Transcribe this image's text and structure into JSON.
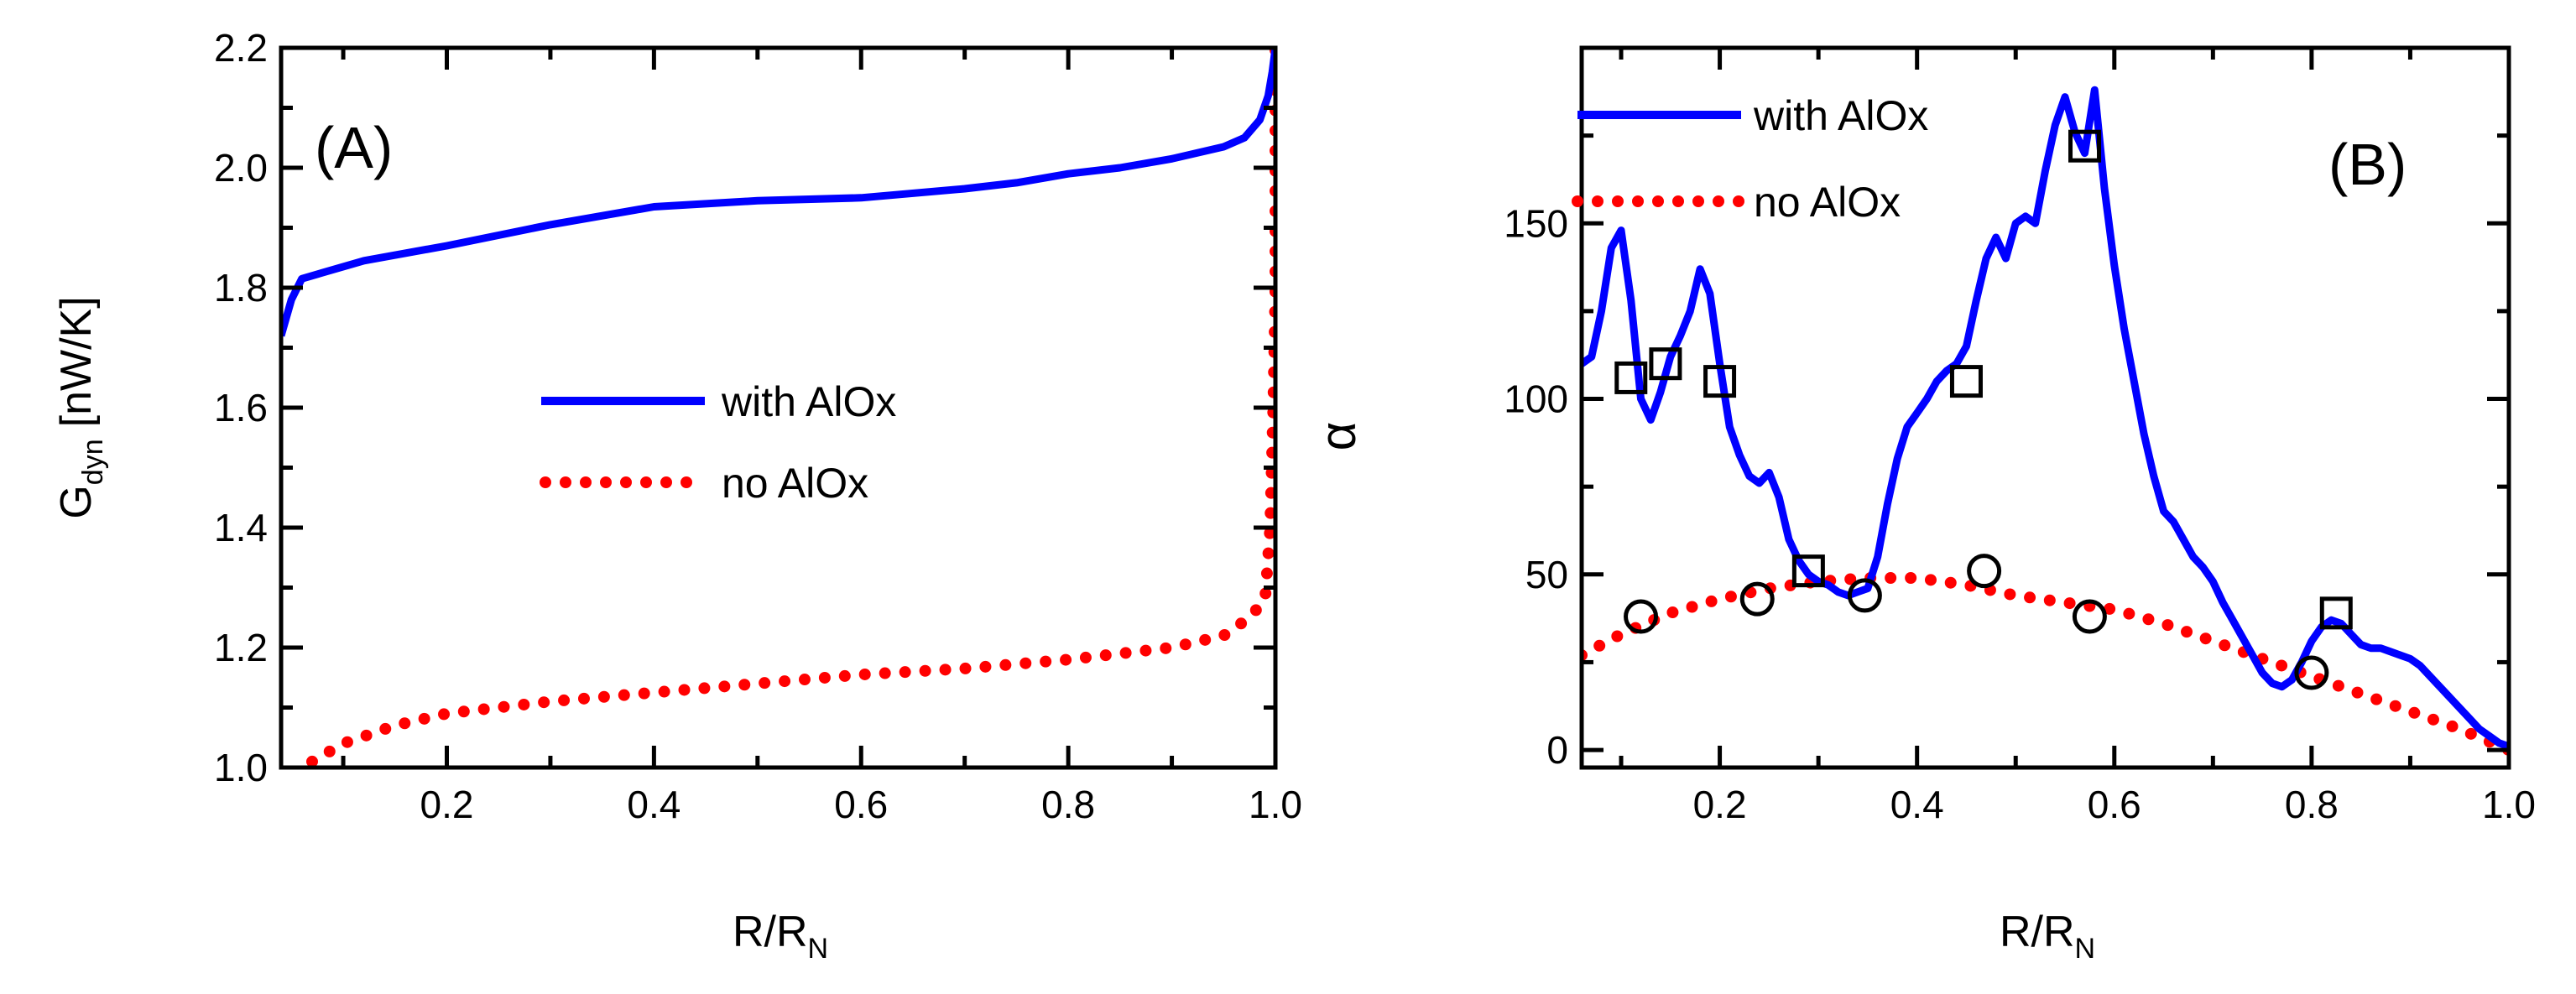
{
  "chart_data": [
    {
      "panel": "(A)",
      "type": "line",
      "xlabel": "R/R",
      "xlabel_sub": "N",
      "ylabel": "G",
      "ylabel_sub": "dyn",
      "ylabel_unit": "[nW/K]",
      "xlim": [
        0.04,
        1.0
      ],
      "ylim": [
        1.0,
        2.2
      ],
      "xticks": [
        0.2,
        0.4,
        0.6,
        0.8,
        1.0
      ],
      "xtick_labels": [
        "0.2",
        "0.4",
        "0.6",
        "0.8",
        "1.0"
      ],
      "yticks": [
        1.0,
        1.2,
        1.4,
        1.6,
        1.8,
        2.0,
        2.2
      ],
      "ytick_labels": [
        "1.0",
        "1.2",
        "1.4",
        "1.6",
        "1.8",
        "2.0",
        "2.2"
      ],
      "legend_position": "center",
      "series": [
        {
          "name": "with AlOx",
          "color": "#0000ff",
          "style": "solid",
          "x": [
            0.04,
            0.05,
            0.06,
            0.08,
            0.12,
            0.2,
            0.3,
            0.4,
            0.5,
            0.6,
            0.7,
            0.75,
            0.8,
            0.85,
            0.9,
            0.95,
            0.97,
            0.985,
            0.993,
            0.997,
            1.0
          ],
          "y": [
            1.72,
            1.78,
            1.815,
            1.825,
            1.845,
            1.87,
            1.905,
            1.935,
            1.945,
            1.95,
            1.965,
            1.975,
            1.99,
            2.0,
            2.015,
            2.035,
            2.05,
            2.08,
            2.12,
            2.16,
            2.2
          ]
        },
        {
          "name": "no AlOx",
          "color": "#ff0000",
          "style": "dotted",
          "x": [
            0.07,
            0.1,
            0.15,
            0.2,
            0.3,
            0.4,
            0.5,
            0.6,
            0.7,
            0.8,
            0.9,
            0.95,
            0.975,
            0.99,
            0.995,
            0.998,
            1.0,
            1.0,
            1.0,
            1.0
          ],
          "y": [
            1.01,
            1.04,
            1.07,
            1.09,
            1.11,
            1.125,
            1.14,
            1.155,
            1.165,
            1.18,
            1.2,
            1.22,
            1.25,
            1.28,
            1.4,
            1.6,
            1.8,
            2.0,
            2.1,
            2.2
          ]
        }
      ]
    },
    {
      "panel": "(B)",
      "type": "line",
      "xlabel": "R/R",
      "xlabel_sub": "N",
      "ylabel": "α",
      "xlim": [
        0.06,
        1.0
      ],
      "ylim": [
        -5,
        200
      ],
      "xticks": [
        0.2,
        0.4,
        0.6,
        0.8,
        1.0
      ],
      "xtick_labels": [
        "0.2",
        "0.4",
        "0.6",
        "0.8",
        "1.0"
      ],
      "yticks": [
        0,
        50,
        100,
        150
      ],
      "ytick_labels": [
        "0",
        "50",
        "100",
        "150"
      ],
      "legend_position": "top-left",
      "series": [
        {
          "name": "with AlOx",
          "color": "#0000ff",
          "style": "solid",
          "x": [
            0.06,
            0.07,
            0.08,
            0.09,
            0.1,
            0.11,
            0.12,
            0.13,
            0.14,
            0.15,
            0.16,
            0.17,
            0.18,
            0.19,
            0.2,
            0.21,
            0.22,
            0.23,
            0.24,
            0.25,
            0.26,
            0.27,
            0.28,
            0.29,
            0.3,
            0.31,
            0.32,
            0.33,
            0.34,
            0.35,
            0.36,
            0.37,
            0.38,
            0.39,
            0.4,
            0.41,
            0.42,
            0.43,
            0.44,
            0.45,
            0.46,
            0.47,
            0.48,
            0.49,
            0.5,
            0.51,
            0.52,
            0.53,
            0.54,
            0.55,
            0.56,
            0.57,
            0.58,
            0.59,
            0.6,
            0.61,
            0.62,
            0.63,
            0.64,
            0.65,
            0.66,
            0.67,
            0.68,
            0.69,
            0.7,
            0.71,
            0.72,
            0.73,
            0.74,
            0.75,
            0.76,
            0.77,
            0.78,
            0.79,
            0.8,
            0.81,
            0.82,
            0.83,
            0.84,
            0.85,
            0.86,
            0.87,
            0.88,
            0.89,
            0.9,
            0.91,
            0.92,
            0.93,
            0.94,
            0.95,
            0.96,
            0.97,
            0.98,
            0.99,
            1.0
          ],
          "y": [
            110,
            112,
            125,
            143,
            148,
            128,
            100,
            94,
            102,
            112,
            118,
            125,
            137,
            130,
            110,
            92,
            84,
            78,
            76,
            79,
            72,
            60,
            54,
            50,
            48,
            47,
            45,
            44,
            45,
            46,
            55,
            70,
            83,
            92,
            96,
            100,
            105,
            108,
            110,
            115,
            128,
            140,
            146,
            140,
            150,
            152,
            150,
            165,
            178,
            186,
            176,
            170,
            188,
            160,
            138,
            120,
            105,
            90,
            78,
            68,
            65,
            60,
            55,
            52,
            48,
            42,
            37,
            32,
            27,
            22,
            19,
            18,
            20,
            25,
            31,
            35,
            37,
            36,
            33,
            30,
            29,
            29,
            28,
            27,
            26,
            24,
            21,
            18,
            15,
            12,
            9,
            6,
            4,
            2,
            1
          ]
        },
        {
          "name": "no AlOx",
          "color": "#ff0000",
          "style": "dotted",
          "x": [
            0.06,
            0.1,
            0.15,
            0.2,
            0.25,
            0.3,
            0.35,
            0.4,
            0.45,
            0.5,
            0.55,
            0.6,
            0.65,
            0.7,
            0.75,
            0.8,
            0.85,
            0.9,
            0.95,
            1.0
          ],
          "y": [
            27,
            33,
            39,
            43,
            46,
            48,
            49,
            49,
            47,
            44,
            42,
            40,
            36,
            31,
            26,
            21,
            16,
            11,
            6,
            0
          ]
        }
      ],
      "markers": [
        {
          "shape": "square",
          "x": [
            0.11,
            0.145,
            0.2,
            0.29,
            0.45,
            0.57,
            0.825
          ],
          "y": [
            106,
            110,
            105,
            51,
            105,
            172,
            39
          ]
        },
        {
          "shape": "circle",
          "x": [
            0.12,
            0.238,
            0.347,
            0.468,
            0.575,
            0.8
          ],
          "y": [
            38,
            43,
            44,
            51,
            38,
            22
          ]
        }
      ]
    }
  ]
}
